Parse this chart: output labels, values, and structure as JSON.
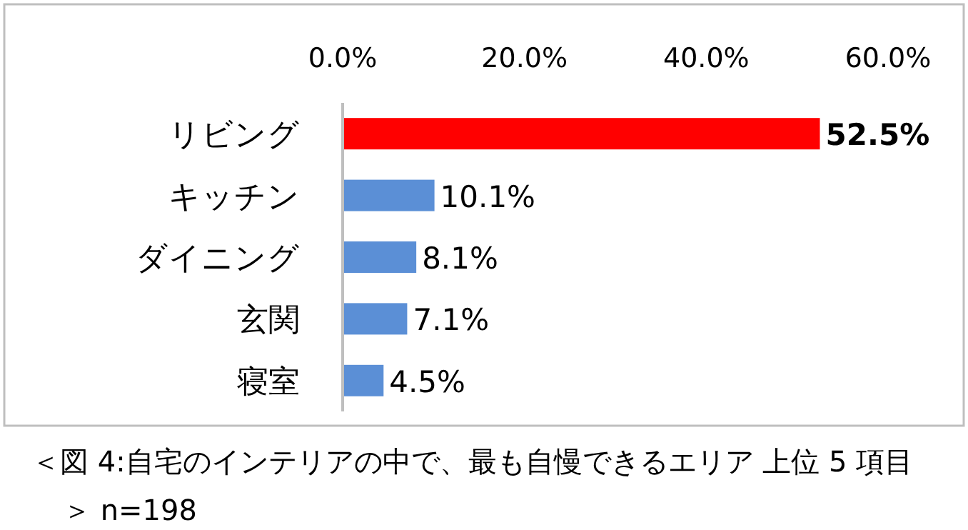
{
  "chart_data": {
    "type": "bar",
    "orientation": "horizontal",
    "categories": [
      "リビング",
      "キッチン",
      "ダイニング",
      "玄関",
      "寝室"
    ],
    "values": [
      52.5,
      10.1,
      8.1,
      7.1,
      4.5
    ],
    "colors": [
      "#ff0000",
      "#5b8fd6",
      "#5b8fd6",
      "#5b8fd6",
      "#5b8fd6"
    ],
    "value_labels": [
      "52.5%",
      "10.1%",
      "8.1%",
      "7.1%",
      "4.5%"
    ],
    "xlim": [
      0,
      60
    ],
    "xticks": [
      {
        "value": 0,
        "label": "0.0%"
      },
      {
        "value": 20,
        "label": "20.0%"
      },
      {
        "value": 40,
        "label": "40.0%"
      },
      {
        "value": 60,
        "label": "60.0%"
      }
    ],
    "grid": false,
    "annotations": [
      "＜図 4:自宅のインテリアの中で、最も自慢できるエリア 上位 5 項目＞ n=198"
    ]
  }
}
